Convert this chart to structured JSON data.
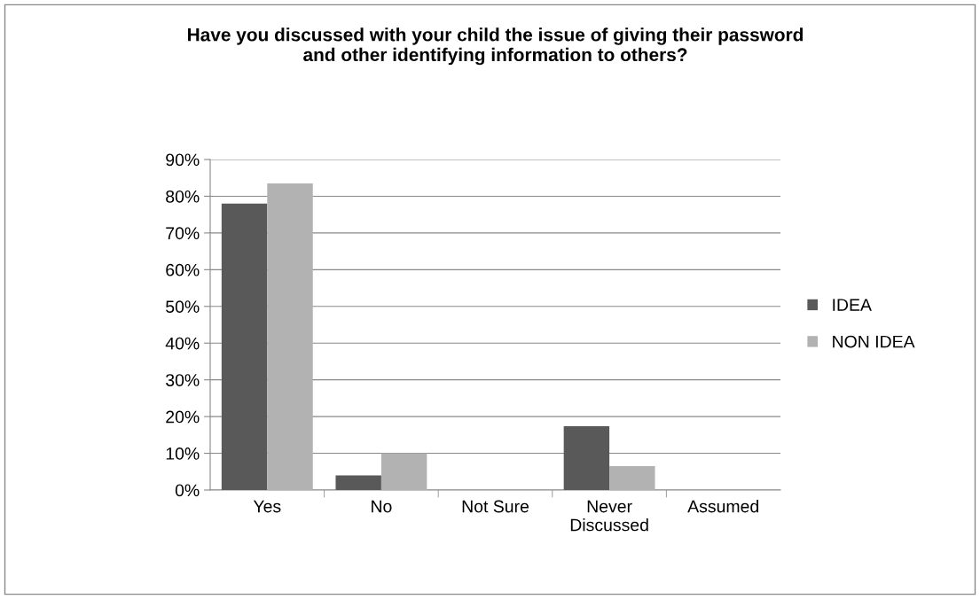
{
  "chart_data": {
    "type": "bar",
    "title": "Have you discussed with your child the issue of giving their password\nand other identifying information to others?",
    "categories": [
      "Yes",
      "No",
      "Not Sure",
      "Never\nDiscussed",
      "Assumed"
    ],
    "series": [
      {
        "name": "IDEA",
        "color": "#595959",
        "values": [
          78,
          4,
          0,
          17.4,
          0
        ]
      },
      {
        "name": "NON IDEA",
        "color": "#b2b2b2",
        "values": [
          83.5,
          10,
          0,
          6.5,
          0
        ]
      }
    ],
    "ylim": [
      0,
      90
    ],
    "yticks": [
      {
        "value": 0,
        "label": "0%"
      },
      {
        "value": 10,
        "label": "10%"
      },
      {
        "value": 20,
        "label": "20%"
      },
      {
        "value": 30,
        "label": "30%"
      },
      {
        "value": 40,
        "label": "40%"
      },
      {
        "value": 50,
        "label": "50%"
      },
      {
        "value": 60,
        "label": "60%"
      },
      {
        "value": 70,
        "label": "70%"
      },
      {
        "value": 80,
        "label": "80%"
      },
      {
        "value": 90,
        "label": "90%"
      }
    ],
    "grid": "y",
    "legend": "right"
  }
}
